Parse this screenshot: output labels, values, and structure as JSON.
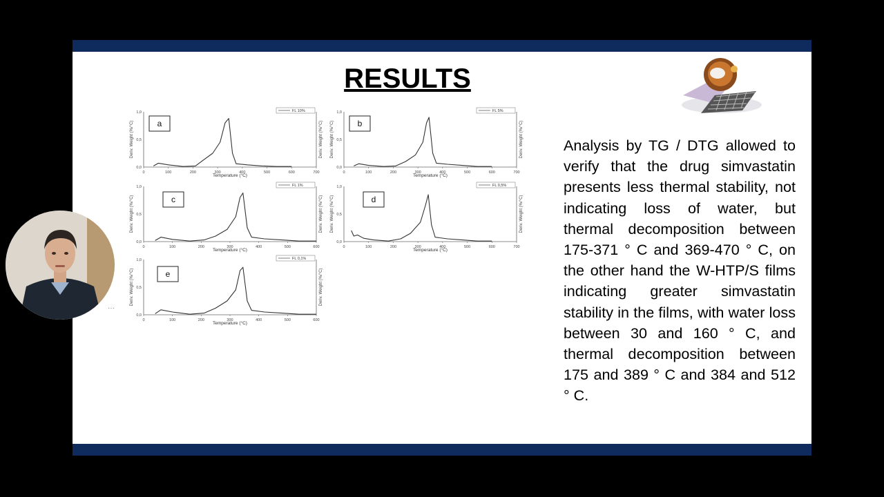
{
  "slide": {
    "title": "RESULTS",
    "body": "Analysis by TG / DTG allowed to verify that the drug simvastatin presents less thermal stability, not indicating loss of water, but thermal decomposition between 175-371 ° C and 369-470 ° C, on the other hand the W-HTP/S films indicating greater simvastatin stability in the films, with water loss between 30 and 160 ° C, and thermal decomposition between 175 and 389 ° C and 384 and 512 ° C.",
    "header_color": "#0f2a5c"
  },
  "chart_data": [
    {
      "type": "line",
      "panel": "a",
      "legend": "FL 10%",
      "xlabel": "Temperature (°C)",
      "ylabel": "Deriv. Weight (%/°C)",
      "xlim": [
        0,
        700
      ],
      "ylim": [
        0,
        1.0
      ],
      "xticks": [
        "0",
        "100",
        "200",
        "300",
        "400",
        "500",
        "600",
        "700"
      ],
      "yticks": [
        "0,0",
        "0,5",
        "1,0"
      ],
      "x": [
        40,
        60,
        100,
        160,
        210,
        240,
        280,
        310,
        330,
        345,
        360,
        375,
        420,
        480,
        540,
        600
      ],
      "y": [
        0.02,
        0.07,
        0.04,
        0.01,
        0.02,
        0.12,
        0.25,
        0.45,
        0.8,
        0.88,
        0.25,
        0.06,
        0.04,
        0.02,
        0.01,
        0.01
      ]
    },
    {
      "type": "line",
      "panel": "b",
      "legend": "FL 5%",
      "xlabel": "Temperature (°C)",
      "ylabel": "Deriv. Weight (%/°C)",
      "xlim": [
        0,
        700
      ],
      "ylim": [
        0,
        1.0
      ],
      "xticks": [
        "0",
        "100",
        "200",
        "300",
        "400",
        "500",
        "600",
        "700"
      ],
      "yticks": [
        "0,0",
        "0,5",
        "1,0"
      ],
      "x": [
        40,
        60,
        100,
        160,
        210,
        250,
        290,
        320,
        335,
        345,
        360,
        375,
        420,
        480,
        540,
        600
      ],
      "y": [
        0.02,
        0.06,
        0.03,
        0.01,
        0.02,
        0.1,
        0.22,
        0.45,
        0.8,
        0.9,
        0.25,
        0.07,
        0.05,
        0.03,
        0.01,
        0.01
      ]
    },
    {
      "type": "line",
      "panel": "c",
      "legend": "FL 1%",
      "xlabel": "Temperature (°C)",
      "ylabel": "Deriv. Weight (%/°C)",
      "xlim": [
        0,
        600
      ],
      "ylim": [
        0,
        1.0
      ],
      "xticks": [
        "0",
        "100",
        "200",
        "300",
        "400",
        "500",
        "600"
      ],
      "yticks": [
        "0,0",
        "0,5",
        "1,0"
      ],
      "x": [
        40,
        60,
        100,
        160,
        210,
        250,
        290,
        320,
        335,
        345,
        360,
        375,
        420,
        480,
        540,
        600
      ],
      "y": [
        0.02,
        0.08,
        0.04,
        0.01,
        0.03,
        0.1,
        0.22,
        0.45,
        0.8,
        0.88,
        0.25,
        0.08,
        0.05,
        0.03,
        0.01,
        0.01
      ]
    },
    {
      "type": "line",
      "panel": "d",
      "legend": "FL 0,5%",
      "xlabel": "Temperature (°C)",
      "ylabel": "Deriv. Weight (%/°C)",
      "xlim": [
        0,
        700
      ],
      "ylim": [
        0,
        1.0
      ],
      "xticks": [
        "0",
        "100",
        "200",
        "300",
        "400",
        "500",
        "600",
        "700"
      ],
      "yticks": [
        "0,0",
        "0,5",
        "1,0"
      ],
      "x": [
        30,
        40,
        55,
        80,
        120,
        180,
        230,
        270,
        310,
        330,
        342,
        355,
        370,
        420,
        480,
        540,
        600
      ],
      "y": [
        0.2,
        0.1,
        0.12,
        0.06,
        0.03,
        0.01,
        0.05,
        0.15,
        0.35,
        0.65,
        0.85,
        0.3,
        0.08,
        0.05,
        0.03,
        0.01,
        0.01
      ]
    },
    {
      "type": "line",
      "panel": "e",
      "legend": "FL 0,1%",
      "xlabel": "Temperature (°C)",
      "ylabel": "Deriv. Weight (%/°C)",
      "xlim": [
        0,
        600
      ],
      "ylim": [
        0,
        1.0
      ],
      "xticks": [
        "0",
        "100",
        "200",
        "300",
        "400",
        "500",
        "600"
      ],
      "yticks": [
        "0,0",
        "0,5",
        "1,0"
      ],
      "x": [
        40,
        60,
        100,
        160,
        210,
        250,
        290,
        320,
        335,
        345,
        360,
        375,
        420,
        480,
        540,
        600
      ],
      "y": [
        0.02,
        0.09,
        0.05,
        0.01,
        0.03,
        0.12,
        0.25,
        0.45,
        0.8,
        0.86,
        0.25,
        0.08,
        0.05,
        0.03,
        0.01,
        0.01
      ]
    }
  ],
  "webcam": {
    "more_label": "···"
  }
}
